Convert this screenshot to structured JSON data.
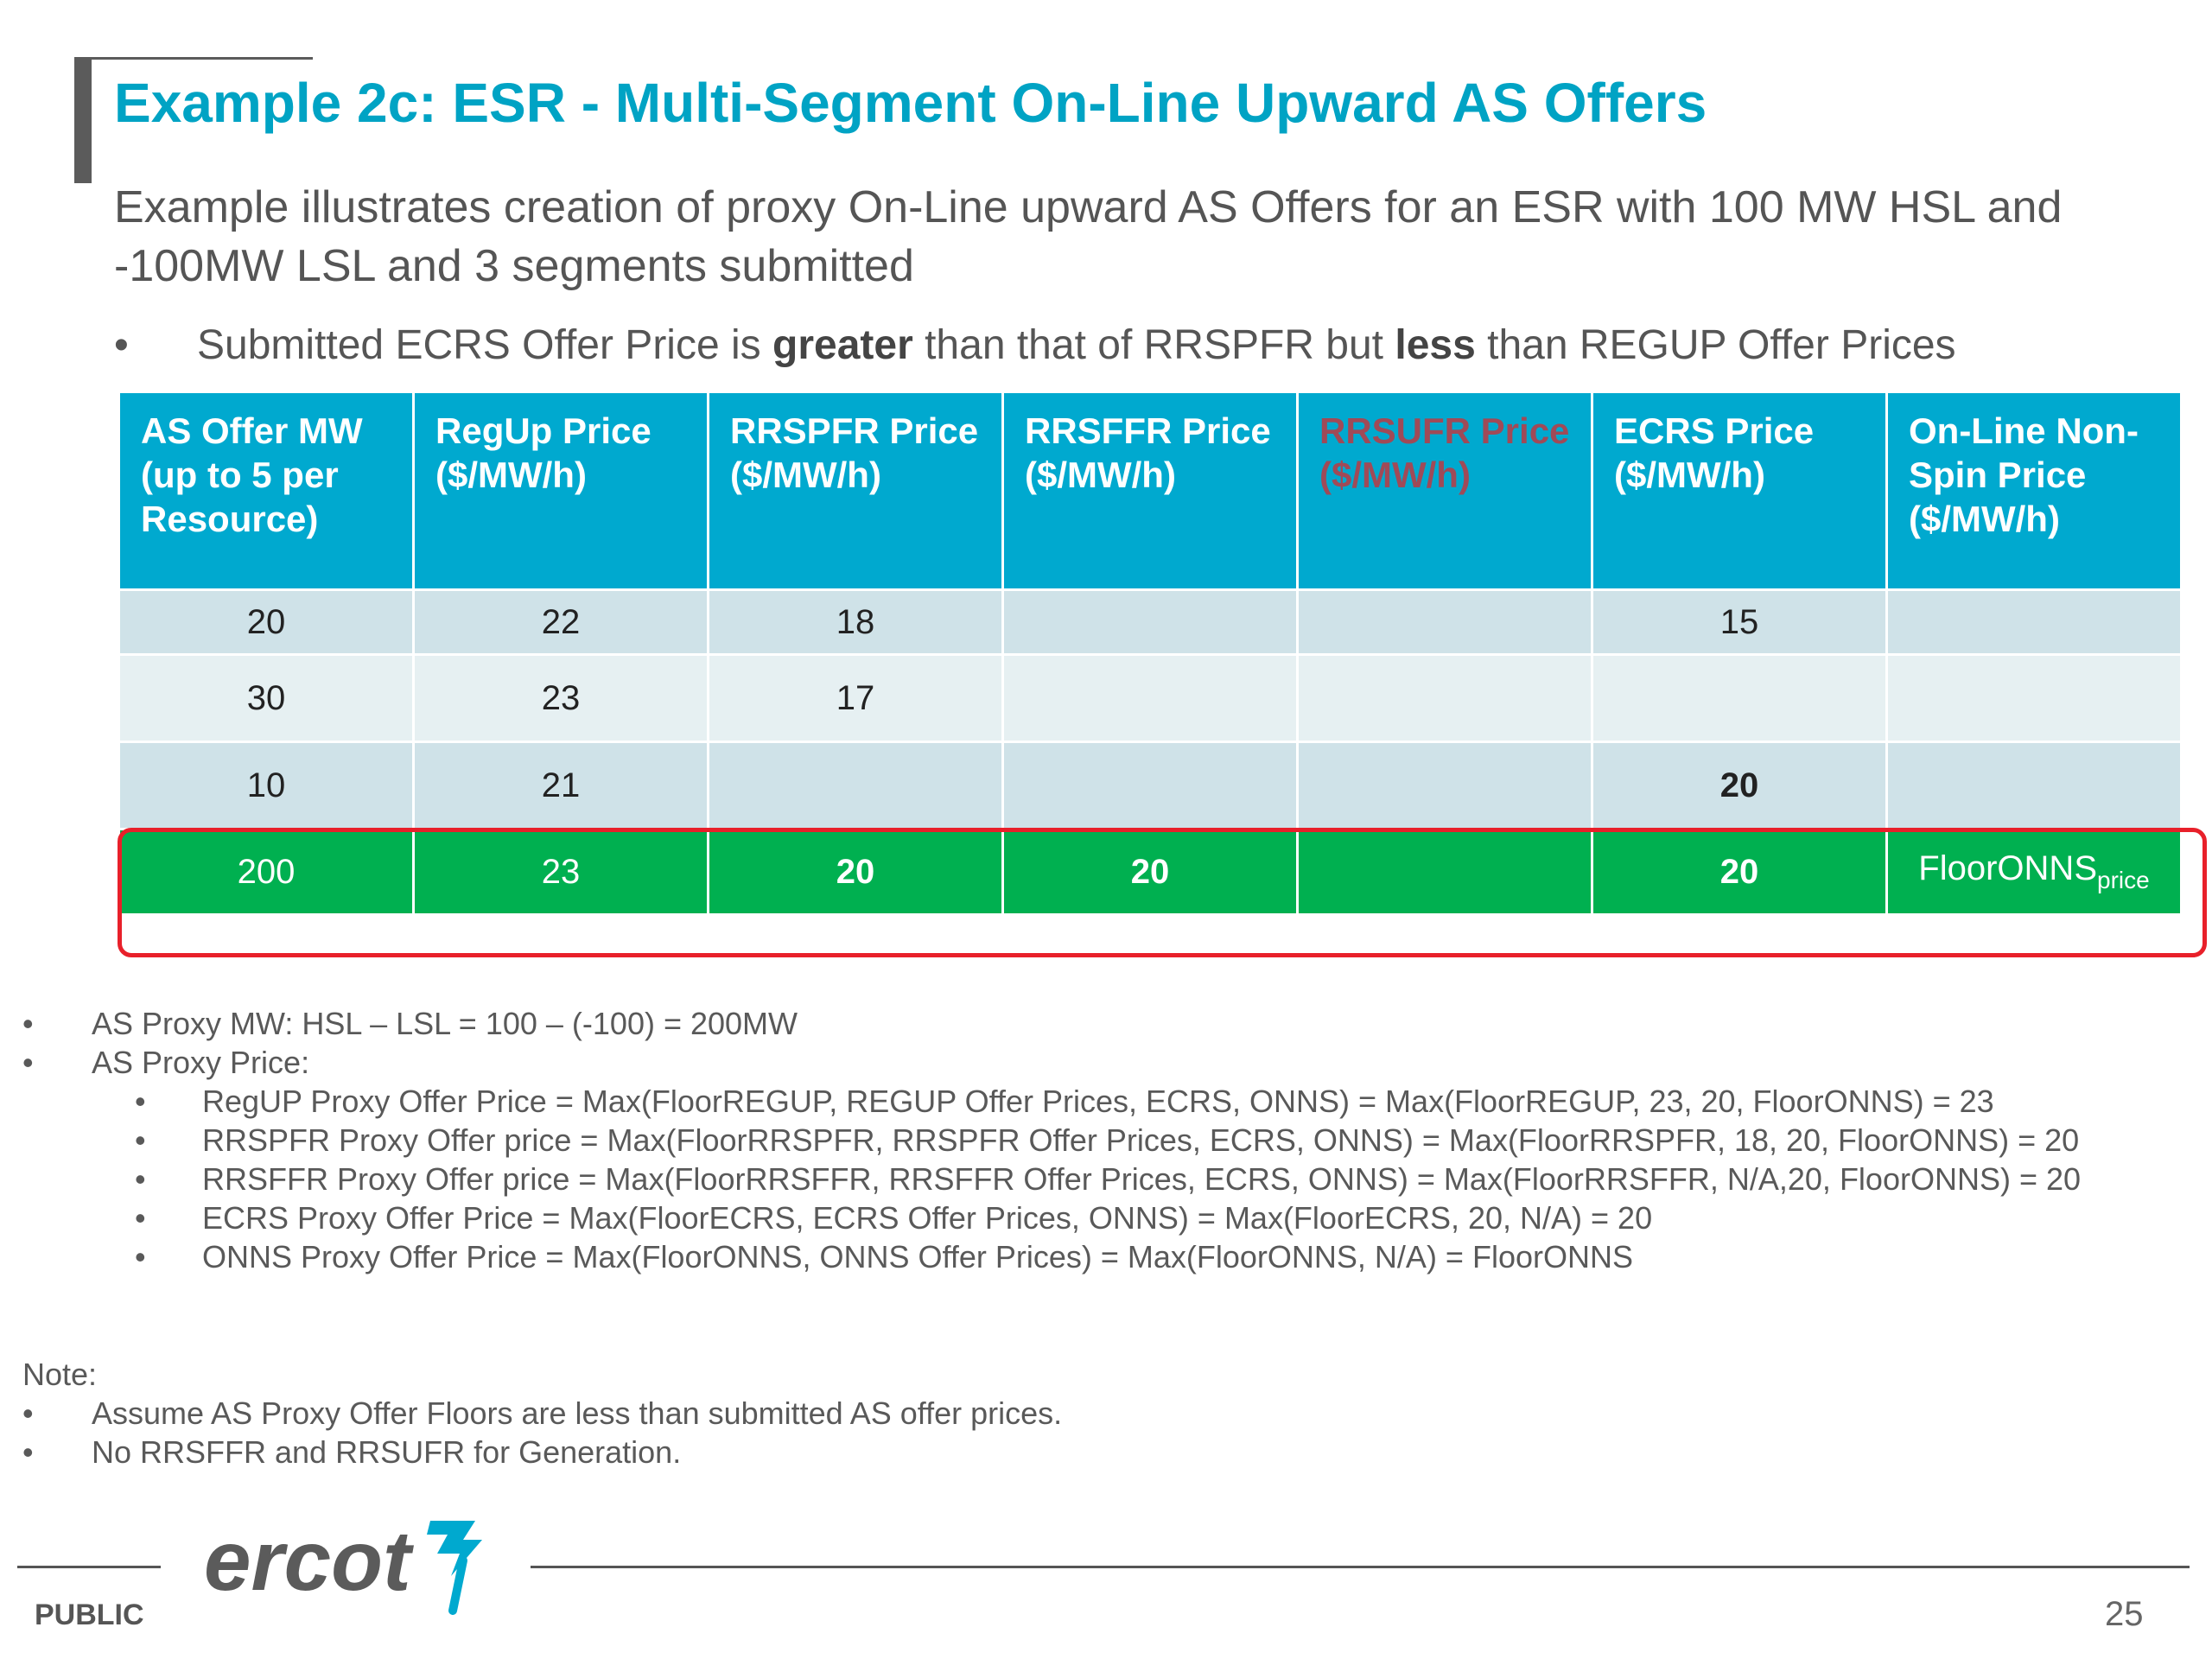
{
  "title": "Example 2c: ESR - Multi-Segment On-Line Upward AS Offers",
  "intro": "Example illustrates creation of proxy On-Line upward AS Offers for an ESR with 100 MW HSL and -100MW LSL and 3 segments submitted",
  "bullet": {
    "symbol": "•",
    "part1": "Submitted ECRS Offer Price is ",
    "bold1": "greater",
    "part2": " than that of RRSPFR but ",
    "bold2": "less",
    "part3": " than REGUP Offer Prices"
  },
  "table": {
    "headers": [
      "AS Offer MW (up to 5 per Resource)",
      "RegUp Price ($/MW/h)",
      "RRSPFR Price ($/MW/h)",
      "RRSFFR Price ($/MW/h)",
      "RRSUFR Price ($/MW/h)",
      "ECRS Price ($/MW/h)",
      "On-Line Non-Spin Price ($/MW/h)"
    ],
    "rows": [
      [
        "20",
        "22",
        "18",
        "",
        "",
        "15",
        ""
      ],
      [
        "30",
        "23",
        "17",
        "",
        "",
        "",
        ""
      ],
      [
        "10",
        "21",
        "",
        "",
        "",
        "20",
        ""
      ]
    ],
    "proxy_row": [
      "200",
      "23",
      "20",
      "20",
      "",
      "20",
      "FloorONNS"
    ],
    "proxy_subscript": "price"
  },
  "calc": {
    "proxy_mw": "AS Proxy MW: HSL – LSL = 100 – (-100) = 200MW",
    "proxy_price_label": "AS Proxy Price:",
    "items": [
      "RegUP Proxy Offer Price = Max(FloorREGUP, REGUP Offer Prices, ECRS, ONNS) = Max(FloorREGUP, 23, 20, FloorONNS) = 23",
      "RRSPFR Proxy Offer price = Max(FloorRRSPFR, RRSPFR Offer Prices, ECRS, ONNS) = Max(FloorRRSPFR, 18, 20, FloorONNS) = 20",
      "RRSFFR Proxy Offer price = Max(FloorRRSFFR, RRSFFR Offer Prices, ECRS, ONNS) = Max(FloorRRSFFR, N/A,20, FloorONNS) = 20",
      "ECRS Proxy Offer Price = Max(FloorECRS, ECRS Offer Prices, ONNS) = Max(FloorECRS, 20, N/A) = 20",
      "ONNS Proxy Offer Price = Max(FloorONNS, ONNS Offer Prices) = Max(FloorONNS, N/A) = FloorONNS"
    ]
  },
  "note": {
    "label": "Note:",
    "items": [
      "Assume AS Proxy Offer Floors are less than submitted AS offer prices.",
      "No RRSFFR and RRSUFR for Generation."
    ]
  },
  "footer": {
    "logo_text": "ercot",
    "classification": "PUBLIC",
    "page_number": "25"
  },
  "colors": {
    "title": "#00a3c4",
    "header_bg": "#00a9cf",
    "proxy_row_bg": "#00b050",
    "highlight_border": "#e8202a",
    "logo": "#5b5b5b",
    "logo_mark": "#00a9cf"
  },
  "icons": [
    "ercot-logo-mark"
  ]
}
